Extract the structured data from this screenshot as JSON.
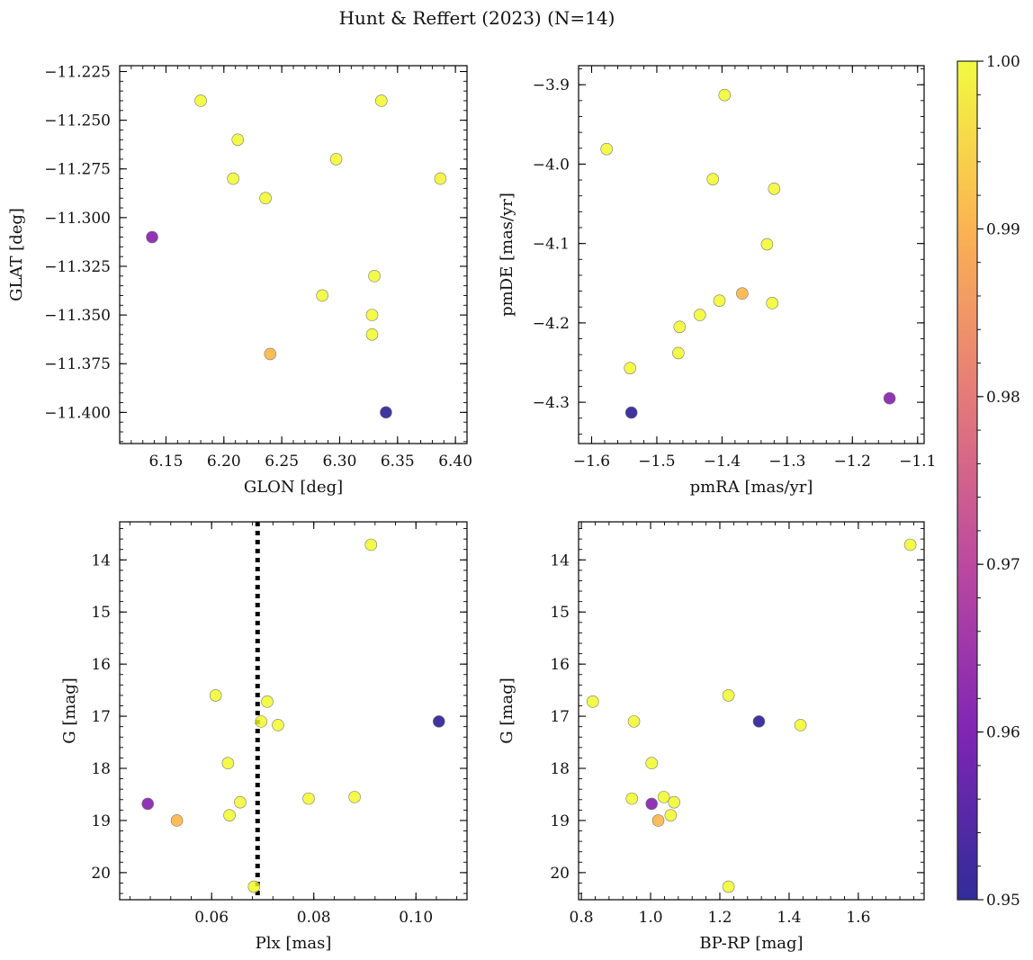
{
  "figure": {
    "title": "Hunt & Reffert (2023) (N=14)"
  },
  "colorbar": {
    "min": 0.95,
    "max": 1.0,
    "ticks": [
      0.95,
      0.96,
      0.97,
      0.98,
      0.99,
      1.0
    ],
    "tick_labels": [
      "0.95",
      "0.96",
      "0.97",
      "0.98",
      "0.99",
      "1.00"
    ],
    "colormap": "plasma",
    "colormap_stops": [
      "#0d0887",
      "#6a00a8",
      "#b12a90",
      "#e16462",
      "#fca636",
      "#f0f921"
    ]
  },
  "chart_data": [
    {
      "type": "scatter",
      "name": "sky",
      "xlabel": "GLON [deg]",
      "ylabel": "GLAT [deg]",
      "xlim": [
        6.11,
        6.41
      ],
      "ylim": [
        -11.416,
        -11.222
      ],
      "xticks": [
        6.15,
        6.2,
        6.25,
        6.3,
        6.35,
        6.4
      ],
      "xtick_labels": [
        "6.15",
        "6.20",
        "6.25",
        "6.30",
        "6.35",
        "6.40"
      ],
      "yticks": [
        -11.225,
        -11.25,
        -11.275,
        -11.3,
        -11.325,
        -11.35,
        -11.375,
        -11.4
      ],
      "ytick_labels": [
        "−11.225",
        "−11.250",
        "−11.275",
        "−11.300",
        "−11.325",
        "−11.350",
        "−11.375",
        "−11.400"
      ],
      "x": [
        6.18,
        6.336,
        6.212,
        6.297,
        6.208,
        6.387,
        6.236,
        6.138,
        6.33,
        6.285,
        6.328,
        6.328,
        6.24,
        6.34
      ],
      "y": [
        -11.24,
        -11.24,
        -11.26,
        -11.27,
        -11.28,
        -11.28,
        -11.29,
        -11.31,
        -11.33,
        -11.34,
        -11.35,
        -11.36,
        -11.37,
        -11.4
      ],
      "color_values": [
        1.0,
        1.0,
        1.0,
        1.0,
        1.0,
        0.999,
        1.0,
        0.962,
        1.0,
        1.0,
        1.0,
        1.0,
        0.991,
        0.951
      ]
    },
    {
      "type": "scatter",
      "name": "proper-motion",
      "xlabel": "pmRA [mas/yr]",
      "ylabel": "pmDE [mas/yr]",
      "xlim": [
        -1.62,
        -1.09
      ],
      "ylim": [
        -4.352,
        -3.876
      ],
      "xticks": [
        -1.6,
        -1.5,
        -1.4,
        -1.3,
        -1.2,
        -1.1
      ],
      "xtick_labels": [
        "−1.6",
        "−1.5",
        "−1.4",
        "−1.3",
        "−1.2",
        "−1.1"
      ],
      "yticks": [
        -3.9,
        -4.0,
        -4.1,
        -4.2,
        -4.3
      ],
      "ytick_labels": [
        "−3.9",
        "−4.0",
        "−4.1",
        "−4.2",
        "−4.3"
      ],
      "x": [
        -1.396,
        -1.577,
        -1.414,
        -1.32,
        -1.331,
        -1.369,
        -1.323,
        -1.404,
        -1.434,
        -1.465,
        -1.467,
        -1.541,
        -1.539,
        -1.143
      ],
      "y": [
        -3.913,
        -3.981,
        -4.019,
        -4.031,
        -4.101,
        -4.163,
        -4.175,
        -4.172,
        -4.19,
        -4.205,
        -4.238,
        -4.257,
        -4.313,
        -4.295
      ],
      "color_values": [
        1.0,
        1.0,
        1.0,
        1.0,
        1.0,
        0.991,
        1.0,
        1.0,
        1.0,
        1.0,
        1.0,
        1.0,
        0.951,
        0.962
      ]
    },
    {
      "type": "scatter",
      "name": "plx-mag",
      "xlabel": "Plx [mas]",
      "ylabel": "G [mag]",
      "xlim": [
        0.042,
        0.11
      ],
      "ylim": [
        20.52,
        13.27
      ],
      "xticks": [
        0.06,
        0.08,
        0.1
      ],
      "xtick_labels": [
        "0.06",
        "0.08",
        "0.10"
      ],
      "yticks": [
        14,
        15,
        16,
        17,
        18,
        19,
        20
      ],
      "ytick_labels": [
        "14",
        "15",
        "16",
        "17",
        "18",
        "19",
        "20"
      ],
      "vline": 0.069,
      "x": [
        0.0912,
        0.0608,
        0.0709,
        0.0697,
        0.073,
        0.1045,
        0.0632,
        0.088,
        0.079,
        0.0656,
        0.0475,
        0.0635,
        0.0532,
        0.0683
      ],
      "y": [
        13.71,
        16.6,
        16.72,
        17.1,
        17.17,
        17.1,
        17.9,
        18.55,
        18.58,
        18.65,
        18.68,
        18.9,
        19.0,
        20.27
      ],
      "color_values": [
        1.0,
        1.0,
        1.0,
        1.0,
        1.0,
        0.951,
        1.0,
        1.0,
        1.0,
        1.0,
        0.962,
        1.0,
        0.991,
        1.0
      ]
    },
    {
      "type": "scatter",
      "name": "cmd",
      "xlabel": "BP-RP [mag]",
      "ylabel": "G [mag]",
      "xlim": [
        0.792,
        1.79
      ],
      "ylim": [
        20.52,
        13.27
      ],
      "xticks": [
        0.8,
        1.0,
        1.2,
        1.4,
        1.6
      ],
      "xtick_labels": [
        "0.8",
        "1.0",
        "1.2",
        "1.4",
        "1.6"
      ],
      "yticks": [
        14,
        15,
        16,
        17,
        18,
        19,
        20
      ],
      "ytick_labels": [
        "14",
        "15",
        "16",
        "17",
        "18",
        "19",
        "20"
      ],
      "x": [
        1.75,
        1.225,
        0.833,
        0.952,
        1.313,
        1.433,
        1.003,
        1.038,
        0.946,
        1.068,
        1.003,
        1.058,
        1.022,
        1.225
      ],
      "y": [
        13.71,
        16.6,
        16.72,
        17.1,
        17.1,
        17.17,
        17.9,
        18.55,
        18.58,
        18.65,
        18.68,
        18.9,
        19.0,
        20.27
      ],
      "color_values": [
        1.0,
        1.0,
        1.0,
        1.0,
        0.951,
        1.0,
        1.0,
        1.0,
        1.0,
        1.0,
        0.962,
        1.0,
        0.991,
        1.0
      ]
    }
  ]
}
